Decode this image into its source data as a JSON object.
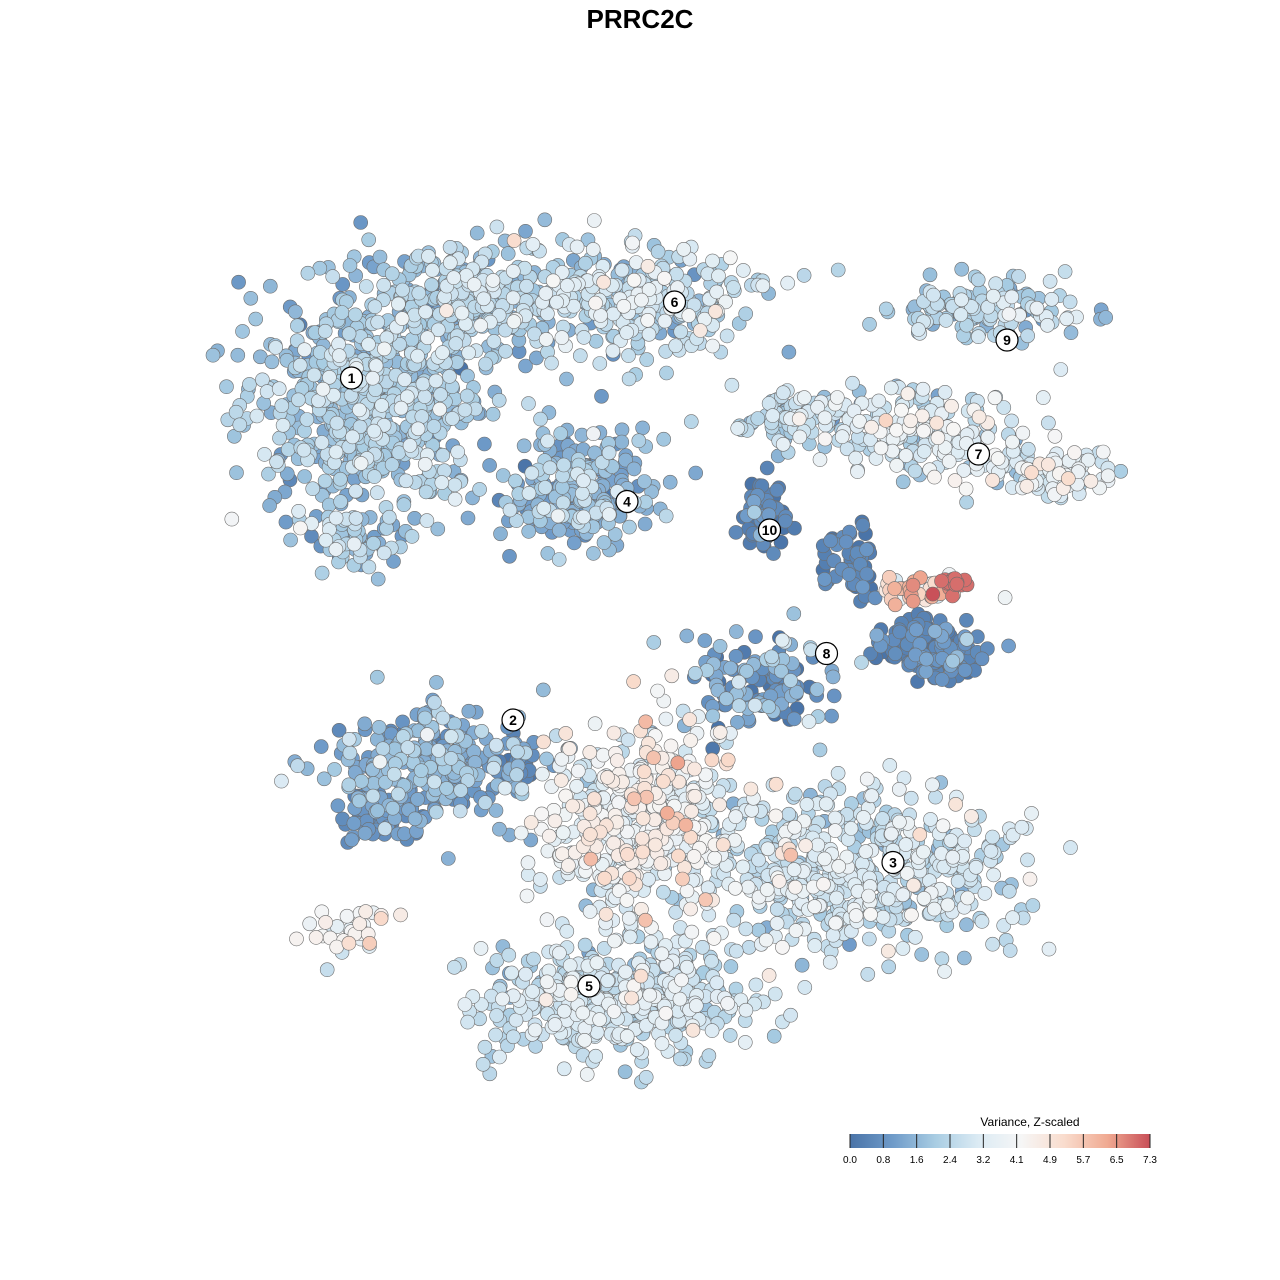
{
  "chart_data": {
    "type": "scatter",
    "title": "PRRC2C",
    "legend": {
      "title": "Variance, Z-scaled",
      "placement": "bottom-right",
      "ticks": [
        "0.0",
        "0.8",
        "1.6",
        "2.4",
        "3.2",
        "4.1",
        "4.9",
        "5.7",
        "6.5",
        "7.3"
      ],
      "range": [
        0.0,
        7.3
      ]
    },
    "colorscale": [
      "#4a74a8",
      "#6f9bc9",
      "#a9cde3",
      "#dcebf4",
      "#f6f6f6",
      "#f9dccd",
      "#f0aa92",
      "#c84e57"
    ],
    "clusters": [
      {
        "label": "1",
        "x": 1.7,
        "y": 7.6
      },
      {
        "label": "2",
        "x": 3.4,
        "y": 4.0
      },
      {
        "label": "3",
        "x": 7.4,
        "y": 2.5
      },
      {
        "label": "4",
        "x": 4.6,
        "y": 6.3
      },
      {
        "label": "5",
        "x": 4.2,
        "y": 1.2
      },
      {
        "label": "6",
        "x": 5.1,
        "y": 8.4
      },
      {
        "label": "7",
        "x": 8.3,
        "y": 6.8
      },
      {
        "label": "8",
        "x": 6.7,
        "y": 4.7
      },
      {
        "label": "9",
        "x": 8.6,
        "y": 8.0
      },
      {
        "label": "10",
        "x": 6.1,
        "y": 6.0
      }
    ],
    "axes": {
      "visible": false,
      "grid": false
    }
  }
}
